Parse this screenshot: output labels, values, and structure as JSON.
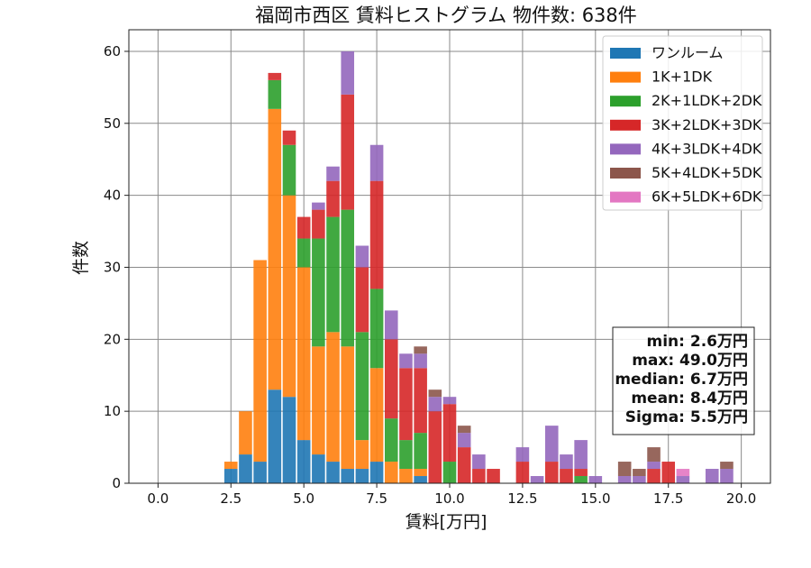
{
  "chart_data": {
    "type": "bar",
    "stacked": true,
    "title": "福岡市西区 賃料ヒストグラム 物件数: 638件",
    "xlabel": "賃料[万円]",
    "ylabel": "件数",
    "xlim": [
      -1,
      21
    ],
    "ylim": [
      0,
      63
    ],
    "grid": true,
    "legend_position": "top-right",
    "x_ticks": [
      0,
      2.5,
      5,
      7.5,
      10,
      12.5,
      15,
      17.5,
      20
    ],
    "x_tick_labels": [
      "0.0",
      "2.5",
      "5.0",
      "7.5",
      "10.0",
      "12.5",
      "15.0",
      "17.5",
      "20.0"
    ],
    "y_ticks": [
      0,
      10,
      20,
      30,
      40,
      50,
      60
    ],
    "y_tick_labels": [
      "0",
      "10",
      "20",
      "30",
      "40",
      "50",
      "60"
    ],
    "bin_width": 0.5,
    "x": [
      2.5,
      3.0,
      3.5,
      4.0,
      4.5,
      5.0,
      5.5,
      6.0,
      6.5,
      7.0,
      7.5,
      8.0,
      8.5,
      9.0,
      9.5,
      10.0,
      10.5,
      11.0,
      11.5,
      12.5,
      13.0,
      13.5,
      14.0,
      14.5,
      15.0,
      16.0,
      16.5,
      17.0,
      17.5,
      18.0,
      19.0,
      19.5
    ],
    "series": [
      {
        "name": "ワンルーム",
        "color": "#1f77b4",
        "values": [
          2,
          4,
          3,
          13,
          12,
          6,
          4,
          3,
          2,
          2,
          3,
          0,
          0,
          1,
          0,
          0,
          0,
          0,
          0,
          0,
          0,
          0,
          0,
          0,
          0,
          0,
          0,
          0,
          0,
          0,
          0,
          0
        ]
      },
      {
        "name": "1K+1DK",
        "color": "#ff7f0e",
        "values": [
          1,
          6,
          28,
          39,
          28,
          24,
          15,
          18,
          17,
          4,
          13,
          3,
          2,
          1,
          0,
          0,
          0,
          0,
          0,
          0,
          0,
          0,
          0,
          0,
          0,
          0,
          0,
          0,
          0,
          0,
          0,
          0
        ]
      },
      {
        "name": "2K+1LDK+2DK",
        "color": "#2ca02c",
        "values": [
          0,
          0,
          0,
          4,
          7,
          4,
          15,
          16,
          19,
          15,
          11,
          6,
          4,
          5,
          0,
          3,
          0,
          0,
          0,
          0,
          0,
          0,
          0,
          1,
          0,
          0,
          0,
          0,
          0,
          0,
          0,
          0
        ]
      },
      {
        "name": "3K+2LDK+3DK",
        "color": "#d62728",
        "values": [
          0,
          0,
          0,
          1,
          2,
          3,
          4,
          5,
          16,
          9,
          15,
          11,
          10,
          9,
          10,
          8,
          5,
          2,
          2,
          3,
          0,
          3,
          2,
          1,
          0,
          0,
          0,
          2,
          3,
          0,
          0,
          0
        ]
      },
      {
        "name": "4K+3LDK+4DK",
        "color": "#9467bd",
        "values": [
          0,
          0,
          0,
          0,
          0,
          0,
          1,
          2,
          6,
          3,
          5,
          4,
          2,
          2,
          2,
          1,
          2,
          2,
          0,
          2,
          1,
          5,
          2,
          4,
          1,
          1,
          1,
          1,
          0,
          1,
          2,
          2
        ]
      },
      {
        "name": "5K+4LDK+5DK",
        "color": "#8c564b",
        "values": [
          0,
          0,
          0,
          0,
          0,
          0,
          0,
          0,
          0,
          0,
          0,
          0,
          0,
          1,
          1,
          0,
          1,
          0,
          0,
          0,
          0,
          0,
          0,
          0,
          0,
          2,
          1,
          2,
          0,
          0,
          0,
          1
        ]
      },
      {
        "name": "6K+5LDK+6DK",
        "color": "#e377c2",
        "values": [
          0,
          0,
          0,
          0,
          0,
          0,
          0,
          0,
          0,
          0,
          0,
          0,
          0,
          0,
          0,
          0,
          0,
          0,
          0,
          0,
          0,
          0,
          0,
          0,
          0,
          0,
          0,
          0,
          0,
          1,
          0,
          0
        ]
      }
    ],
    "stats": [
      "min: 2.6万円",
      "max: 49.0万円",
      "median: 6.7万円",
      "mean: 8.4万円",
      "Sigma: 5.5万円"
    ]
  }
}
